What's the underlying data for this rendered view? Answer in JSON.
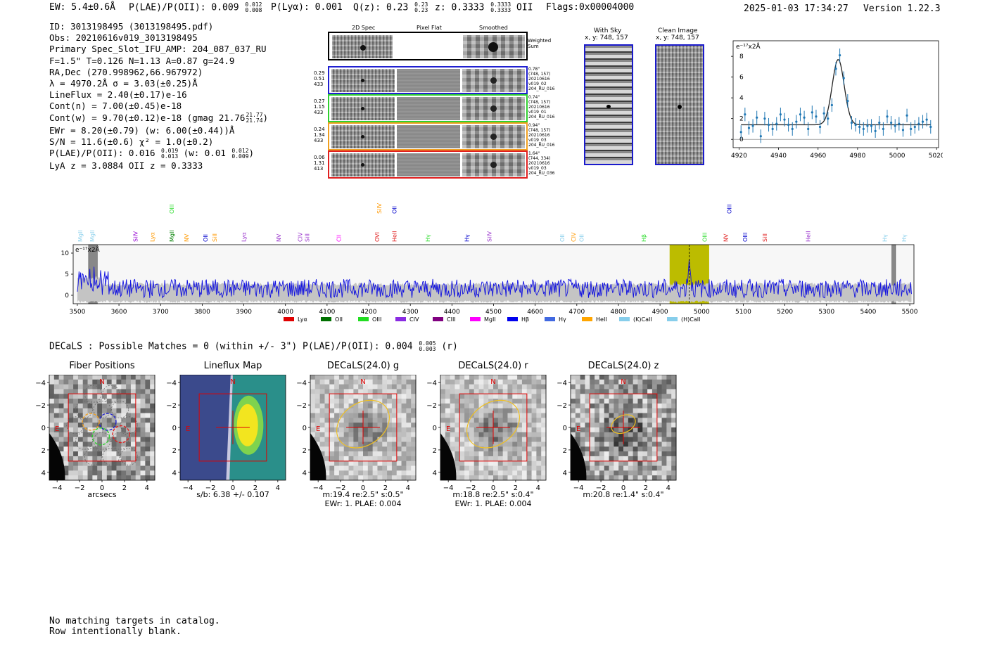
{
  "header": {
    "ew": "EW: 5.4±0.6Å",
    "plae_label": "P(LAE)/P(OII): 0.009",
    "plae_hi": "0.012",
    "plae_lo": "0.008",
    "plya": "P(Lyα): 0.001",
    "qz_label": "Q(z): 0.23",
    "qz_hi": "0.23",
    "qz_lo": "0.23",
    "z_label": "z: 0.3333",
    "z_hi": "0.3333",
    "z_lo": "0.3333",
    "z_line": "OII",
    "flags": "Flags:0x00004000",
    "datetime": "2025-01-03 17:34:27",
    "version": "Version 1.22.3"
  },
  "info": {
    "id": "ID: 3013198495 (3013198495.pdf)",
    "obs": "Obs: 20210616v019_3013198495",
    "primary": "Primary Spec_Slot_IFU_AMP: 204_087_037_RU",
    "fiber": "F=1.5\"  T=0.126  N=1.13  A=0.87  g=24.9",
    "radec": "RA,Dec (270.998962,66.967972)",
    "lambda": "λ = 4970.2Å   σ = 3.03(±0.25)Å",
    "lineflux": "LineFlux = 2.40(±0.17)e-16",
    "contn": "Cont(n) = 7.00(±0.45)e-18",
    "contw": "Cont(w) = 9.70(±0.12)e-18 (gmag 21.76",
    "contw_hi": "21.77",
    "contw_lo": "21.74",
    "contw_end": ")",
    "ewr": "EWr = 8.20(±0.79)  (w: 6.00(±0.44))Å",
    "sn": "S/N = 11.6(±0.6)   χ² = 1.0(±0.2)",
    "plae": "P(LAE)/P(OII): 0.016",
    "plae_hi": "0.019",
    "plae_lo": "0.013",
    "plae_w": "(w: 0.01",
    "plae_w_hi": "0.012",
    "plae_w_lo": "0.009",
    "plae_w_end": ")",
    "redshifts": "LyA z = 3.0884   OII z = 0.3333"
  },
  "cutouts": {
    "col_2d": "2D Spec",
    "col_flat": "Pixel Flat",
    "col_smooth": "Smoothed",
    "weighted_sum": "Weighted Sum",
    "rows": [
      {
        "color": "#2020d0",
        "left": [
          "0.29",
          "0.51",
          "433"
        ],
        "right": [
          "0.78\"",
          "(748, 157)",
          "20210616",
          "v019_02",
          "204_RU_016"
        ]
      },
      {
        "color": "#30d030",
        "left": [
          "0.27",
          "1.15",
          "433"
        ],
        "right": [
          "0.74\"",
          "(748, 157)",
          "20210616",
          "v019_01",
          "204_RU_016"
        ]
      },
      {
        "color": "#f0a020",
        "left": [
          "0.24",
          "1.34",
          "433"
        ],
        "right": [
          "0.94\"",
          "(748, 157)",
          "20210616",
          "v019_03",
          "204_RU_016"
        ]
      },
      {
        "color": "#e02020",
        "left": [
          "0.06",
          "1.31",
          "413"
        ],
        "right": [
          "1.64\"",
          "(744, 334)",
          "20210616",
          "v019_03",
          "204_RU_036"
        ]
      }
    ]
  },
  "sky": {
    "with_sky_title": "With Sky",
    "with_sky_xy": "x, y: 748, 157",
    "clean_title": "Clean Image",
    "clean_xy": "x, y: 748, 157"
  },
  "chart_data": [
    {
      "type": "scatter",
      "title": "",
      "ylabel_text": "e⁻¹⁷x2Å",
      "xlim": [
        4917,
        5021
      ],
      "ylim": [
        -0.8,
        9.5
      ],
      "xticks": [
        4920,
        4940,
        4960,
        4980,
        5000,
        5020
      ],
      "yticks": [
        0,
        2,
        4,
        6,
        8
      ],
      "points_x": [
        4921,
        4923,
        4925,
        4927,
        4929,
        4931,
        4933,
        4935,
        4937,
        4939,
        4941,
        4943,
        4945,
        4947,
        4949,
        4951,
        4953,
        4955,
        4957,
        4959,
        4961,
        4963,
        4965,
        4967,
        4969,
        4971,
        4973,
        4975,
        4977,
        4979,
        4981,
        4983,
        4985,
        4987,
        4989,
        4991,
        4993,
        4995,
        4997,
        4999,
        5001,
        5003,
        5005,
        5007,
        5009,
        5011,
        5013,
        5015,
        5017
      ],
      "points_y": [
        0.7,
        2.4,
        1.1,
        1.3,
        2.1,
        0.3,
        2.0,
        1.4,
        1.0,
        1.5,
        2.4,
        1.9,
        1.4,
        1.0,
        1.7,
        2.4,
        2.1,
        1.0,
        2.6,
        2.2,
        1.2,
        2.5,
        2.0,
        3.3,
        6.8,
        8.1,
        5.9,
        3.7,
        1.6,
        1.4,
        1.2,
        1.0,
        1.3,
        1.3,
        0.8,
        1.6,
        1.0,
        2.2,
        1.6,
        1.3,
        1.5,
        0.9,
        2.3,
        1.0,
        1.2,
        1.5,
        1.7,
        1.9,
        1.2
      ],
      "errors": 0.65,
      "model": {
        "continuum": 1.4,
        "amplitude": 6.3,
        "center": 4970.2,
        "sigma": 3.03
      }
    },
    {
      "type": "line",
      "ylabel_text": "e⁻¹⁷x2Å",
      "xlim": [
        3490,
        5510
      ],
      "ylim": [
        -2,
        12
      ],
      "xticks": [
        3500,
        3600,
        3700,
        3800,
        3900,
        4000,
        4100,
        4200,
        4300,
        4400,
        4500,
        4600,
        4700,
        4800,
        4900,
        5000,
        5100,
        5200,
        5300,
        5400,
        5500
      ],
      "yticks": [
        0,
        5,
        10
      ],
      "highlight_range": [
        4923,
        5018
      ],
      "line_center": 4970.2,
      "gray_bars": [
        [
          3527,
          3548
        ],
        [
          5457,
          5466
        ]
      ],
      "lines_bottom": [
        {
          "label": "MgII",
          "x": 3507,
          "color": "#87ceeb"
        },
        {
          "label": "MgII",
          "x": 3536,
          "color": "#87ceeb"
        },
        {
          "label": "SiIV",
          "x": 3640,
          "color": "#9400d3"
        },
        {
          "label": "Lyα",
          "x": 3680,
          "color": "#ff9900"
        },
        {
          "label": "MgII",
          "x": 3727,
          "color": "#008000"
        },
        {
          "label": "NV",
          "x": 3762,
          "color": "#ff9900"
        },
        {
          "label": "OII",
          "x": 3808,
          "color": "#0000cc"
        },
        {
          "label": "SiII",
          "x": 3830,
          "color": "#ff9900"
        },
        {
          "label": "Lyα",
          "x": 3900,
          "color": "#9933cc"
        },
        {
          "label": "NV",
          "x": 3984,
          "color": "#9933cc"
        },
        {
          "label": "CIV",
          "x": 4035,
          "color": "#9933cc"
        },
        {
          "label": "SiII",
          "x": 4052,
          "color": "#9933cc"
        },
        {
          "label": "CII",
          "x": 4128,
          "color": "#ff00ff"
        },
        {
          "label": "OVI",
          "x": 4220,
          "color": "#e02020"
        },
        {
          "label": "HeII",
          "x": 4262,
          "color": "#e02020"
        },
        {
          "label": "Hγ",
          "x": 4342,
          "color": "#33dd33"
        },
        {
          "label": "Hγ",
          "x": 4436,
          "color": "#0000cc"
        },
        {
          "label": "SiIV",
          "x": 4490,
          "color": "#9933cc"
        },
        {
          "label": "OII",
          "x": 4665,
          "color": "#87ceeb"
        },
        {
          "label": "CIV",
          "x": 4692,
          "color": "#ff9900"
        },
        {
          "label": "OII",
          "x": 4711,
          "color": "#87ceeb"
        },
        {
          "label": "Hβ",
          "x": 4861,
          "color": "#33dd33"
        },
        {
          "label": "OIII",
          "x": 5007,
          "color": "#33dd33"
        },
        {
          "label": "NV",
          "x": 5058,
          "color": "#e02020"
        },
        {
          "label": "OIII",
          "x": 5104,
          "color": "#0000cc"
        },
        {
          "label": "SiII",
          "x": 5152,
          "color": "#e02020"
        },
        {
          "label": "HeII",
          "x": 5256,
          "color": "#9933cc"
        },
        {
          "label": "Hγ",
          "x": 5440,
          "color": "#87ceeb"
        },
        {
          "label": "Hγ",
          "x": 5486,
          "color": "#87ceeb"
        }
      ],
      "lines_top": [
        {
          "label": "OIII",
          "x": 3727,
          "color": "#33dd33"
        },
        {
          "label": "SiIV",
          "x": 4225,
          "color": "#ff9900"
        },
        {
          "label": "OII",
          "x": 4262,
          "color": "#0000cc"
        },
        {
          "label": "OIII",
          "x": 5066,
          "color": "#0000cc"
        }
      ],
      "legend": [
        {
          "label": "Lyα",
          "color": "#e00000"
        },
        {
          "label": "OII",
          "color": "#007000"
        },
        {
          "label": "OIII",
          "color": "#22dd22"
        },
        {
          "label": "CIV",
          "color": "#8a2be2"
        },
        {
          "label": "CIII",
          "color": "#800080"
        },
        {
          "label": "MgII",
          "color": "#ff00ff"
        },
        {
          "label": "Hβ",
          "color": "#0000ee"
        },
        {
          "label": "Hγ",
          "color": "#4169e1"
        },
        {
          "label": "HeII",
          "color": "#ffa500"
        },
        {
          "label": "(K)CaII",
          "color": "#87ceeb"
        },
        {
          "label": "(H)CaII",
          "color": "#87ceeb"
        }
      ]
    }
  ],
  "decals": {
    "summary": "DECaLS : Possible Matches = 0 (within +/- 3\")  P(LAE)/P(OII): 0.004",
    "summary_hi": "0.005",
    "summary_lo": "0.003",
    "summary_end": "(r)",
    "panels": [
      {
        "title": "Fiber Positions",
        "caption1": "arcsecs",
        "caption2": ""
      },
      {
        "title": "Lineflux Map",
        "caption1": "s/b: 6.38 +/- 0.107",
        "caption2": ""
      },
      {
        "title": "DECaLS(24.0) g",
        "caption1": "m:19.4  re:2.5\"  s:0.5\"",
        "caption2": "EWr: 1. PLAE: 0.004"
      },
      {
        "title": "DECaLS(24.0) r",
        "caption1": "m:18.8  re:2.5\"  s:0.4\"",
        "caption2": "EWr: 1. PLAE: 0.004"
      },
      {
        "title": "DECaLS(24.0) z",
        "caption1": "m:20.8  re:1.4\"  s:0.4\"",
        "caption2": ""
      }
    ],
    "axis_ticks": [
      "−4",
      "−2",
      "0",
      "2",
      "4"
    ],
    "north_label": "N",
    "east_label": "E"
  },
  "footer": {
    "line1": "No matching targets in catalog.",
    "line2": "Row intentionally blank."
  }
}
